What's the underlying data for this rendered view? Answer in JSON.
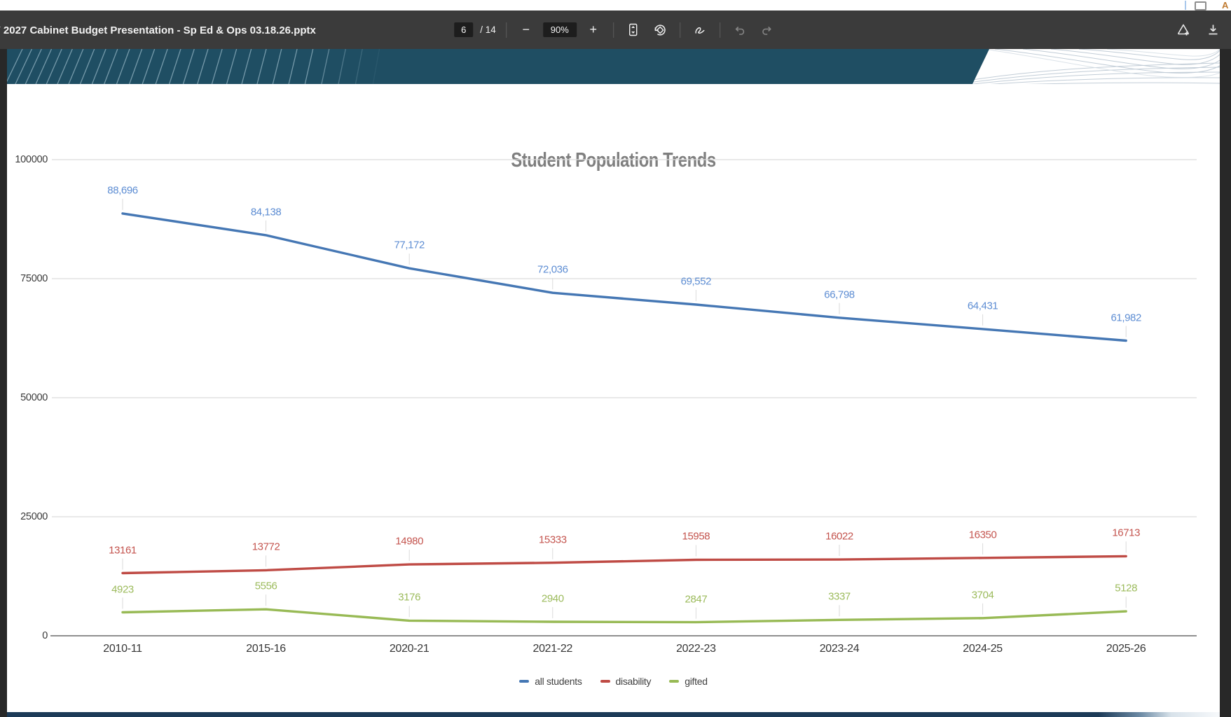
{
  "browser_strip": {
    "note": "partial browser chrome cut off at top edge",
    "fragment_text": "A"
  },
  "toolbar": {
    "document_title": "Y 2027 Cabinet Budget Presentation - Sp Ed & Ops 03.18.26.pptx",
    "page_current": "6",
    "page_separator": "/",
    "page_total": "14",
    "zoom_out_label": "−",
    "zoom_level": "90%",
    "zoom_in_label": "+",
    "icons": {
      "fit_to_page": "fit-to-page-icon",
      "rotate": "rotate-icon",
      "draw": "draw-ink-icon",
      "undo": "undo-icon",
      "redo": "redo-icon",
      "save_add": "save-add-icon",
      "download": "download-icon"
    },
    "colors": {
      "toolbar_bg": "#3b3b3b",
      "inset_box_bg": "#1d1d1d",
      "disabled_icon": "#868686"
    }
  },
  "slide": {
    "header_band_color": "#1f4e63",
    "footer_bar_color": "#1c3a57"
  },
  "chart_data": {
    "type": "line",
    "title": "Student Population Trends",
    "xlabel": "",
    "ylabel": "",
    "ylim": [
      0,
      100000
    ],
    "grid": true,
    "legend_position": "bottom",
    "categories": [
      "2010-11",
      "2015-16",
      "2020-21",
      "2021-22",
      "2022-23",
      "2023-24",
      "2024-25",
      "2025-26"
    ],
    "y_ticks": [
      {
        "value": 0,
        "label": "0"
      },
      {
        "value": 25000,
        "label": "25000"
      },
      {
        "value": 50000,
        "label": "50000"
      },
      {
        "value": 75000,
        "label": "75000"
      },
      {
        "value": 100000,
        "label": "100000"
      }
    ],
    "series": [
      {
        "name": "all students",
        "color": "#4577b4",
        "label_color": "#5d8dd3",
        "values": [
          88696,
          84138,
          77172,
          72036,
          69552,
          66798,
          64431,
          61982
        ],
        "labels": [
          "88,696",
          "84,138",
          "77,172",
          "72,036",
          "69,552",
          "66,798",
          "64,431",
          "61,982"
        ]
      },
      {
        "name": "disability",
        "color": "#bf4b45",
        "label_color": "#c4554f",
        "values": [
          13161,
          13772,
          14980,
          15333,
          15958,
          16022,
          16350,
          16713
        ],
        "labels": [
          "13161",
          "13772",
          "14980",
          "15333",
          "15958",
          "16022",
          "16350",
          "16713"
        ]
      },
      {
        "name": "gifted",
        "color": "#98ba55",
        "label_color": "#9cbb5c",
        "values": [
          4923,
          5556,
          3176,
          2940,
          2847,
          3337,
          3704,
          5128
        ],
        "labels": [
          "4923",
          "5556",
          "3176",
          "2940",
          "2847",
          "3337",
          "3704",
          "5128"
        ]
      }
    ]
  }
}
